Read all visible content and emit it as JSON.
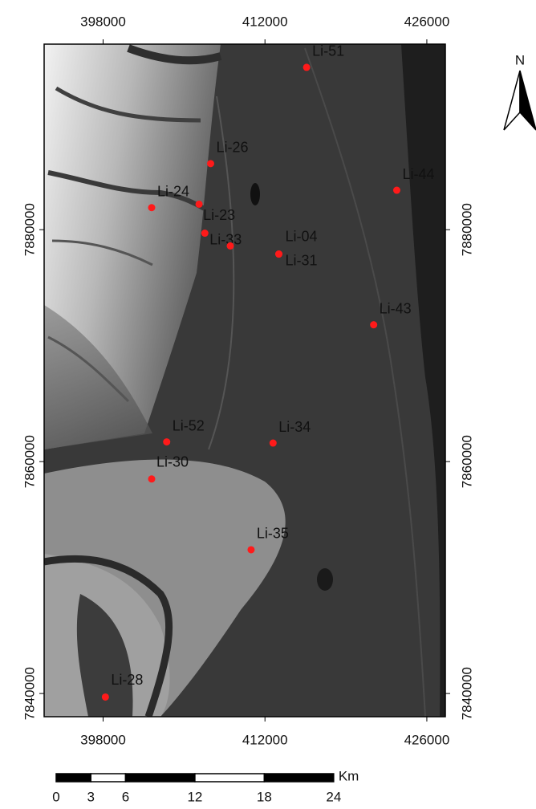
{
  "map": {
    "xlim": [
      392900,
      427600
    ],
    "ylim": [
      7838000,
      7896000
    ],
    "xticks": [
      398000,
      412000,
      426000
    ],
    "yticks": [
      7840000,
      7860000,
      7880000
    ],
    "point_color": "#ff1a1a",
    "label_color": "#e8d21c",
    "points": [
      {
        "label": "Li-51",
        "x": 415600,
        "y": 7894000
      },
      {
        "label": "Li-26",
        "x": 407300,
        "y": 7885700
      },
      {
        "label": "Li-44",
        "x": 423400,
        "y": 7883400
      },
      {
        "label": "Li-24",
        "x": 402200,
        "y": 7881900
      },
      {
        "label": "Li-23",
        "x": 406300,
        "y": 7882200
      },
      {
        "label": "Li-33",
        "x": 406800,
        "y": 7879700
      },
      {
        "label": null,
        "x": 409000,
        "y": 7878600
      },
      {
        "label": "Li-04",
        "x": 413200,
        "y": 7877900
      },
      {
        "label": "Li-31",
        "x": 413200,
        "y": 7877900
      },
      {
        "label": "Li-43",
        "x": 421400,
        "y": 7871800
      },
      {
        "label": "Li-52",
        "x": 403500,
        "y": 7861700
      },
      {
        "label": "Li-34",
        "x": 412700,
        "y": 7861600
      },
      {
        "label": "Li-30",
        "x": 402200,
        "y": 7858500
      },
      {
        "label": "Li-35",
        "x": 410800,
        "y": 7852400
      },
      {
        "label": "Li-28",
        "x": 398200,
        "y": 7839700
      }
    ],
    "north": "N",
    "scale_bar": {
      "ticks": [
        0,
        3,
        6,
        12,
        18,
        24
      ],
      "unit": "Km"
    }
  }
}
